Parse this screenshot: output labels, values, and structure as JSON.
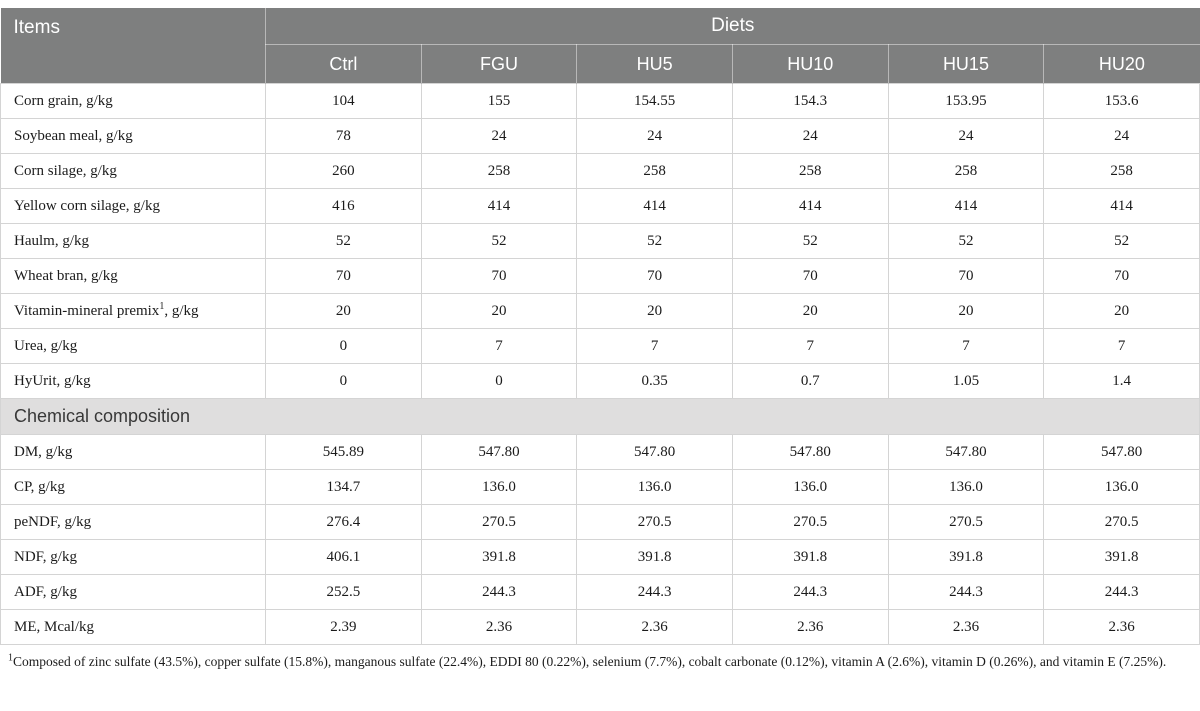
{
  "colors": {
    "header_bg": "#7e7f7f",
    "header_text": "#ffffff",
    "section_bg": "#dfdede",
    "body_border": "#d4d4d4",
    "body_text": "#1b1b1b"
  },
  "table": {
    "items_label": "Items",
    "diets_label": "Diets",
    "columns": [
      "Ctrl",
      "FGU",
      "HU5",
      "HU10",
      "HU15",
      "HU20"
    ],
    "ingredient_rows": [
      {
        "label": "Corn grain, g/kg",
        "sup": "",
        "suffix": "",
        "values": [
          "104",
          "155",
          "154.55",
          "154.3",
          "153.95",
          "153.6"
        ]
      },
      {
        "label": "Soybean meal, g/kg",
        "sup": "",
        "suffix": "",
        "values": [
          "78",
          "24",
          "24",
          "24",
          "24",
          "24"
        ]
      },
      {
        "label": "Corn silage, g/kg",
        "sup": "",
        "suffix": "",
        "values": [
          "260",
          "258",
          "258",
          "258",
          "258",
          "258"
        ]
      },
      {
        "label": "Yellow corn silage, g/kg",
        "sup": "",
        "suffix": "",
        "values": [
          "416",
          "414",
          "414",
          "414",
          "414",
          "414"
        ]
      },
      {
        "label": "Haulm, g/kg",
        "sup": "",
        "suffix": "",
        "values": [
          "52",
          "52",
          "52",
          "52",
          "52",
          "52"
        ]
      },
      {
        "label": "Wheat bran, g/kg",
        "sup": "",
        "suffix": "",
        "values": [
          "70",
          "70",
          "70",
          "70",
          "70",
          "70"
        ]
      },
      {
        "label": "Vitamin-mineral premix",
        "sup": "1",
        "suffix": ", g/kg",
        "values": [
          "20",
          "20",
          "20",
          "20",
          "20",
          "20"
        ]
      },
      {
        "label": "Urea, g/kg",
        "sup": "",
        "suffix": "",
        "values": [
          "0",
          "7",
          "7",
          "7",
          "7",
          "7"
        ]
      },
      {
        "label": "HyUrit, g/kg",
        "sup": "",
        "suffix": "",
        "values": [
          "0",
          "0",
          "0.35",
          "0.7",
          "1.05",
          "1.4"
        ]
      }
    ],
    "section_label": "Chemical composition",
    "chemical_rows": [
      {
        "label": "DM, g/kg",
        "sup": "",
        "suffix": "",
        "values": [
          "545.89",
          "547.80",
          "547.80",
          "547.80",
          "547.80",
          "547.80"
        ]
      },
      {
        "label": "CP, g/kg",
        "sup": "",
        "suffix": "",
        "values": [
          "134.7",
          "136.0",
          "136.0",
          "136.0",
          "136.0",
          "136.0"
        ]
      },
      {
        "label": "peNDF, g/kg",
        "sup": "",
        "suffix": "",
        "values": [
          "276.4",
          "270.5",
          "270.5",
          "270.5",
          "270.5",
          "270.5"
        ]
      },
      {
        "label": "NDF, g/kg",
        "sup": "",
        "suffix": "",
        "values": [
          "406.1",
          "391.8",
          "391.8",
          "391.8",
          "391.8",
          "391.8"
        ]
      },
      {
        "label": "ADF, g/kg",
        "sup": "",
        "suffix": "",
        "values": [
          "252.5",
          "244.3",
          "244.3",
          "244.3",
          "244.3",
          "244.3"
        ]
      },
      {
        "label": "ME, Mcal/kg",
        "sup": "",
        "suffix": "",
        "values": [
          "2.39",
          "2.36",
          "2.36",
          "2.36",
          "2.36",
          "2.36"
        ]
      }
    ]
  },
  "footnote": {
    "sup": "1",
    "text": "Composed of zinc sulfate (43.5%), copper sulfate (15.8%), manganous sulfate (22.4%), EDDI 80 (0.22%), selenium (7.7%), cobalt carbonate (0.12%), vitamin A (2.6%), vitamin D (0.26%), and vitamin E (7.25%)."
  }
}
